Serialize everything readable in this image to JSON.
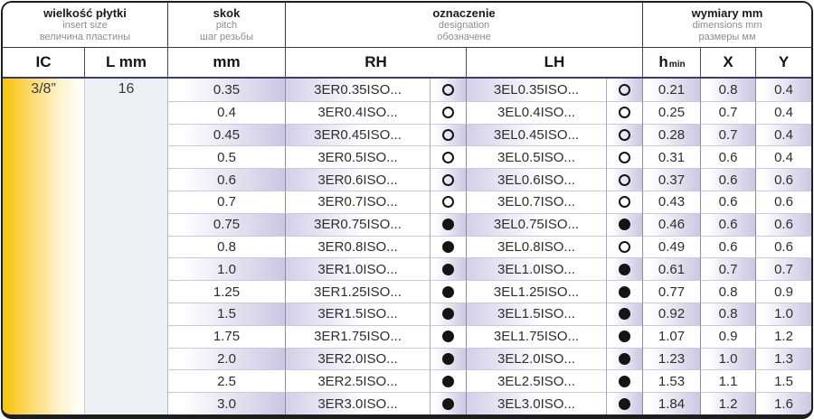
{
  "header_groups": [
    {
      "line1": "wielkość płytki",
      "line2": "insert size",
      "line3": "величина пластины"
    },
    {
      "line1": "skok",
      "line2": "pitch",
      "line3": "шаг резьбы"
    },
    {
      "line1": "oznaczenie",
      "line2": "designation",
      "line3": "обозначене"
    },
    {
      "line1": "wymiary mm",
      "line2": "dimensions mm",
      "line3": "размеры мм"
    }
  ],
  "column_keys": {
    "ic": "IC",
    "l": "L mm",
    "pitch": "mm",
    "rh": "RH",
    "lh": "LH",
    "h": "h",
    "h_sub": "min",
    "x": "X",
    "y": "Y"
  },
  "insert": {
    "ic": "3/8”",
    "l_mm": "16"
  },
  "rows": [
    {
      "pitch": "0.35",
      "rh": "3ER0.35ISO...",
      "rh_filled": false,
      "lh": "3EL0.35ISO...",
      "lh_filled": false,
      "h_min": "0.21",
      "x": "0.8",
      "y": "0.4"
    },
    {
      "pitch": "0.4",
      "rh": "3ER0.4ISO...",
      "rh_filled": false,
      "lh": "3EL0.4ISO...",
      "lh_filled": false,
      "h_min": "0.25",
      "x": "0.7",
      "y": "0.4"
    },
    {
      "pitch": "0.45",
      "rh": "3ER0.45ISO...",
      "rh_filled": false,
      "lh": "3EL0.45ISO...",
      "lh_filled": false,
      "h_min": "0.28",
      "x": "0.7",
      "y": "0.4"
    },
    {
      "pitch": "0.5",
      "rh": "3ER0.5ISO...",
      "rh_filled": false,
      "lh": "3EL0.5ISO...",
      "lh_filled": false,
      "h_min": "0.31",
      "x": "0.6",
      "y": "0.4"
    },
    {
      "pitch": "0.6",
      "rh": "3ER0.6ISO...",
      "rh_filled": false,
      "lh": "3EL0.6ISO...",
      "lh_filled": false,
      "h_min": "0.37",
      "x": "0.6",
      "y": "0.6"
    },
    {
      "pitch": "0.7",
      "rh": "3ER0.7ISO...",
      "rh_filled": false,
      "lh": "3EL0.7ISO...",
      "lh_filled": false,
      "h_min": "0.43",
      "x": "0.6",
      "y": "0.6"
    },
    {
      "pitch": "0.75",
      "rh": "3ER0.75ISO...",
      "rh_filled": true,
      "lh": "3EL0.75ISO...",
      "lh_filled": true,
      "h_min": "0.46",
      "x": "0.6",
      "y": "0.6"
    },
    {
      "pitch": "0.8",
      "rh": "3ER0.8ISO...",
      "rh_filled": true,
      "lh": "3EL0.8ISO...",
      "lh_filled": false,
      "h_min": "0.49",
      "x": "0.6",
      "y": "0.6"
    },
    {
      "pitch": "1.0",
      "rh": "3ER1.0ISO...",
      "rh_filled": true,
      "lh": "3EL1.0ISO...",
      "lh_filled": true,
      "h_min": "0.61",
      "x": "0.7",
      "y": "0.7"
    },
    {
      "pitch": "1.25",
      "rh": "3ER1.25ISO...",
      "rh_filled": true,
      "lh": "3EL1.25ISO...",
      "lh_filled": true,
      "h_min": "0.77",
      "x": "0.8",
      "y": "0.9"
    },
    {
      "pitch": "1.5",
      "rh": "3ER1.5ISO...",
      "rh_filled": true,
      "lh": "3EL1.5ISO...",
      "lh_filled": true,
      "h_min": "0.92",
      "x": "0.8",
      "y": "1.0"
    },
    {
      "pitch": "1.75",
      "rh": "3ER1.75ISO...",
      "rh_filled": true,
      "lh": "3EL1.75ISO...",
      "lh_filled": true,
      "h_min": "1.07",
      "x": "0.9",
      "y": "1.2"
    },
    {
      "pitch": "2.0",
      "rh": "3ER2.0ISO...",
      "rh_filled": true,
      "lh": "3EL2.0ISO...",
      "lh_filled": true,
      "h_min": "1.23",
      "x": "1.0",
      "y": "1.3"
    },
    {
      "pitch": "2.5",
      "rh": "3ER2.5ISO...",
      "rh_filled": true,
      "lh": "3EL2.5ISO...",
      "lh_filled": true,
      "h_min": "1.53",
      "x": "1.1",
      "y": "1.5"
    },
    {
      "pitch": "3.0",
      "rh": "3ER3.0ISO...",
      "rh_filled": true,
      "lh": "3EL3.0ISO...",
      "lh_filled": true,
      "h_min": "1.84",
      "x": "1.2",
      "y": "1.6"
    }
  ],
  "colors": {
    "accent_gold": "#f7c307",
    "stripe_lavender": "#cbc7e3",
    "l_column_bg": "#edf1f6",
    "frame_border": "#1e1e1e",
    "header_rule": "#3c3c6b"
  }
}
